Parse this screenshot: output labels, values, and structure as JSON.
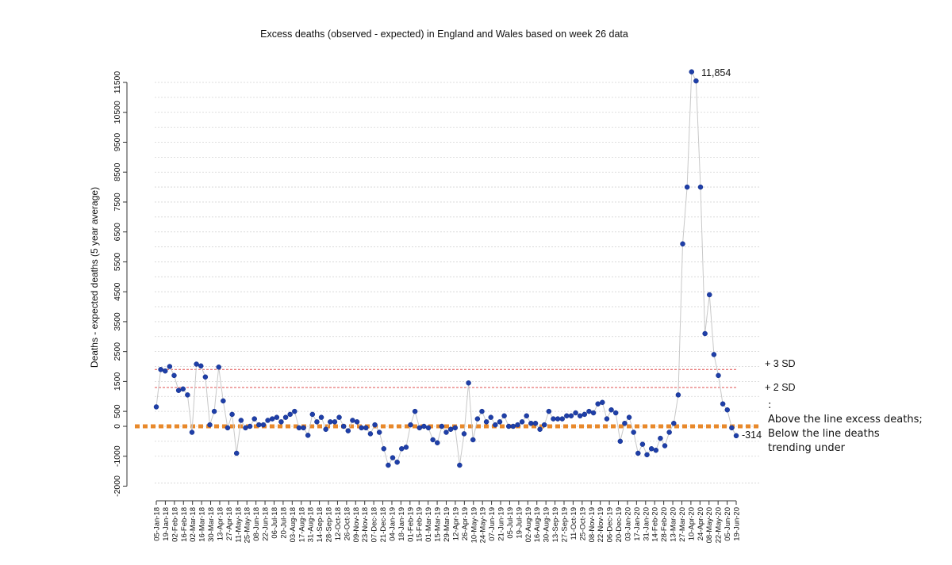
{
  "chart_data": {
    "type": "scatter",
    "title": "Excess deaths (observed - expected) in England and Wales based on week 26 data",
    "xlabel": "",
    "ylabel": "Deaths - expected deaths (5 year average)",
    "ylim": [
      -2000,
      12000
    ],
    "yticks": [
      -2000,
      -1000,
      0,
      500,
      1500,
      2500,
      3500,
      4500,
      5500,
      6500,
      7500,
      8500,
      9500,
      10500,
      11500
    ],
    "ytick_labels": [
      "-2000",
      "-1000",
      "0",
      "500",
      "1500",
      "2500",
      "3500",
      "4500",
      "5500",
      "6500",
      "7500",
      "8500",
      "9500",
      "10500",
      "11500"
    ],
    "gridlines": [
      -1900,
      -1000,
      -500,
      0,
      500,
      1000,
      1500,
      2000,
      2500,
      3000,
      3500,
      4000,
      4500,
      5000,
      5500,
      6000,
      6500,
      7000,
      7500,
      8000,
      8500,
      9000,
      9500,
      10000,
      10500,
      11000,
      11500
    ],
    "grid": true,
    "x_tick_labels": [
      "05-Jan-18",
      "19-Jan-18",
      "02-Feb-18",
      "16-Feb-18",
      "02-Mar-18",
      "16-Mar-18",
      "30-Mar-18",
      "13-Apr-18",
      "27-Apr-18",
      "11-May-18",
      "25-May-18",
      "08-Jun-18",
      "22-Jun-18",
      "06-Jul-18",
      "20-Jul-18",
      "03-Aug-18",
      "17-Aug-18",
      "31-Aug-18",
      "14-Sep-18",
      "28-Sep-18",
      "12-Oct-18",
      "26-Oct-18",
      "09-Nov-18",
      "23-Nov-18",
      "07-Dec-18",
      "21-Dec-18",
      "04-Jan-19",
      "18-Jan-19",
      "01-Feb-19",
      "15-Feb-19",
      "01-Mar-19",
      "15-Mar-19",
      "29-Mar-19",
      "12-Apr-19",
      "26-Apr-19",
      "10-May-19",
      "24-May-19",
      "07-Jun-19",
      "21-Jun-19",
      "05-Jul-19",
      "19-Jul-19",
      "02-Aug-19",
      "16-Aug-19",
      "30-Aug-19",
      "13-Sep-19",
      "27-Sep-19",
      "11-Oct-19",
      "25-Oct-19",
      "08-Nov-19",
      "22-Nov-19",
      "06-Dec-19",
      "20-Dec-19",
      "03-Jan-20",
      "17-Jan-20",
      "31-Jan-20",
      "14-Feb-20",
      "28-Feb-20",
      "13-Mar-20",
      "27-Mar-20",
      "10-Apr-20",
      "24-Apr-20",
      "08-May-20",
      "22-May-20",
      "05-Jun-20",
      "19-Jun-20"
    ],
    "values": [
      650,
      1900,
      1850,
      2000,
      1700,
      1200,
      1250,
      1050,
      -200,
      2080,
      2020,
      1650,
      50,
      500,
      1980,
      850,
      -50,
      400,
      -900,
      200,
      -50,
      0,
      250,
      50,
      50,
      200,
      250,
      300,
      150,
      300,
      400,
      500,
      -50,
      -50,
      -300,
      400,
      150,
      300,
      -100,
      150,
      150,
      300,
      0,
      -150,
      200,
      150,
      -50,
      -50,
      -250,
      50,
      -200,
      -750,
      -1300,
      -1050,
      -1200,
      -750,
      -700,
      50,
      500,
      -50,
      0,
      -50,
      -450,
      -550,
      0,
      -200,
      -100,
      -50,
      -1300,
      -250,
      1450,
      -450,
      250,
      500,
      150,
      300,
      50,
      150,
      350,
      0,
      0,
      50,
      150,
      350,
      100,
      100,
      -100,
      50,
      500,
      250,
      250,
      250,
      350,
      350,
      450,
      350,
      400,
      500,
      450,
      750,
      800,
      250,
      550,
      450,
      -500,
      100,
      300,
      -200,
      -900,
      -600,
      -950,
      -750,
      -800,
      -400,
      -650,
      -200,
      100,
      1050,
      6100,
      8000,
      11854,
      11550,
      8000,
      3100,
      4400,
      2400,
      1700,
      750,
      550,
      -50,
      -314
    ],
    "series": [
      {
        "name": "",
        "color": "#1f3fa8",
        "line_color": "#c8c8c8"
      }
    ],
    "reference_lines": [
      {
        "label": "+ 3 SD",
        "value": 1900,
        "color": "#e05050",
        "style": "dashed"
      },
      {
        "label": "+ 2 SD",
        "value": 1300,
        "color": "#e05050",
        "style": "dashed"
      },
      {
        "label": "",
        "value": 0,
        "color": "#e8892b",
        "style": "thick-dotted"
      }
    ],
    "annotations": {
      "peak_label": "11,854",
      "last_label": "-314"
    }
  },
  "legend_note": {
    "colon": ":",
    "line1": "Above the line excess deaths;",
    "line2": "Below  the line  deaths",
    "line3": "trending under"
  }
}
